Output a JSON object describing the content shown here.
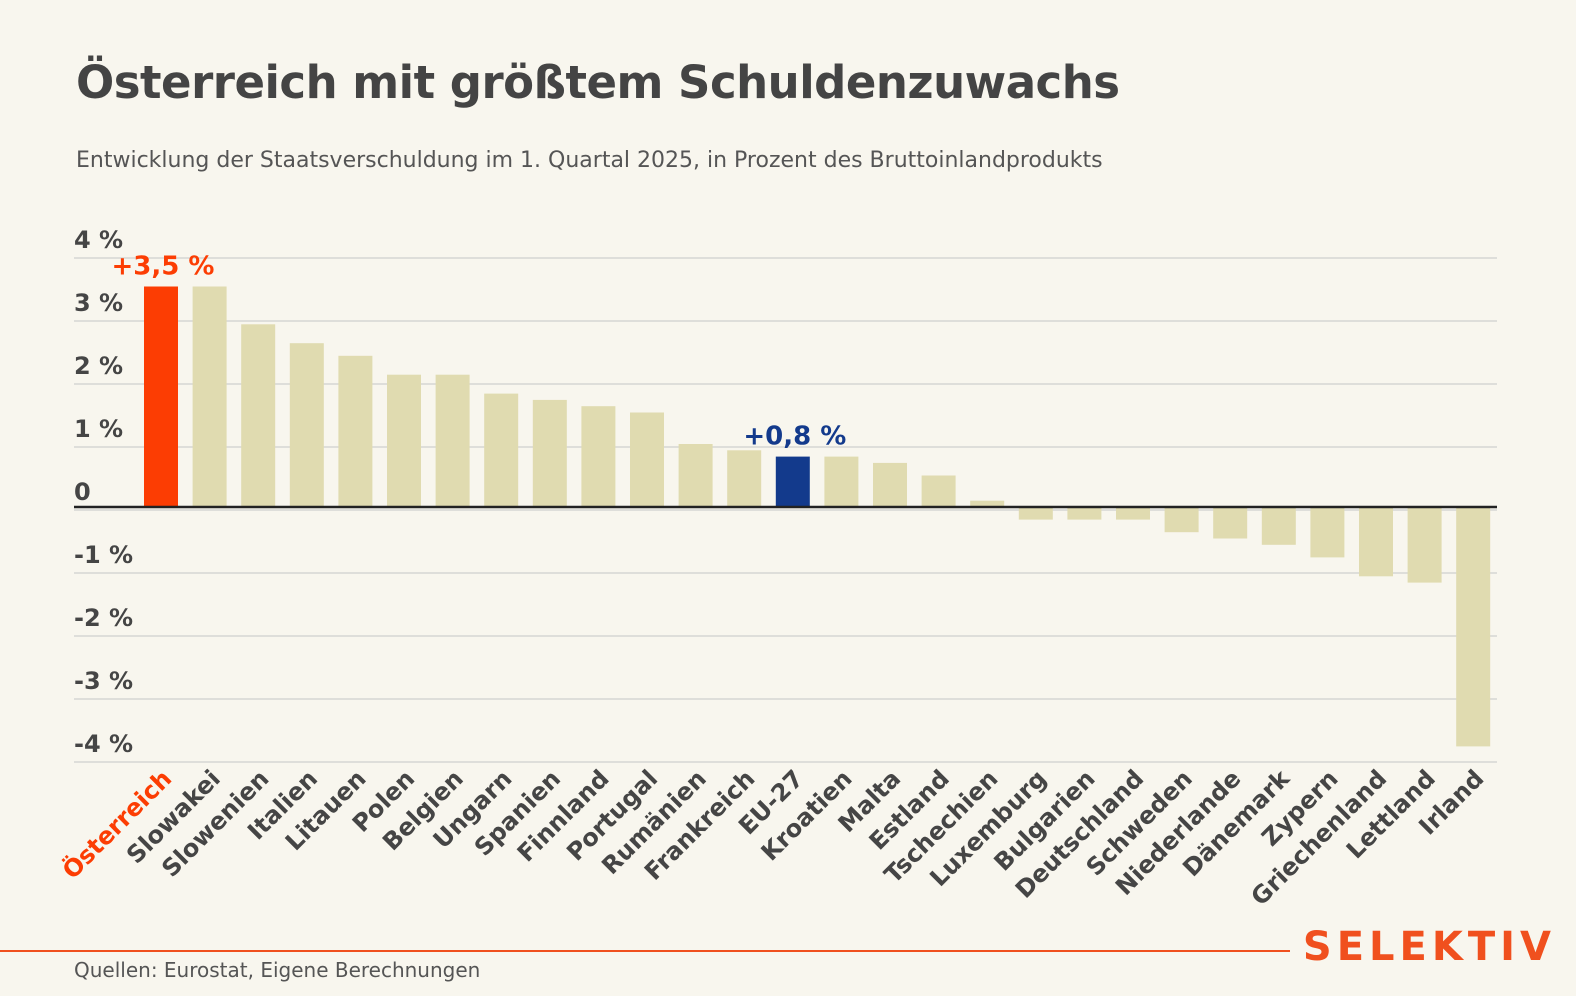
{
  "header": {
    "title": "Österreich mit größtem Schuldenzuwachs",
    "subtitle": "Entwicklung der Staatsverschuldung im 1. Quartal 2025, in Prozent des Bruttoinlandprodukts"
  },
  "footer": {
    "source": "Quellen: Eurostat, Eigene Berechnungen",
    "brand": "SELEKTIV"
  },
  "colors": {
    "default_bar": "#e0dbb0",
    "highlight_primary": "#fc3d03",
    "highlight_secondary": "#133a8c",
    "brand": "#f0501e",
    "grid": "#cfcfcf",
    "axis_text": "#454545"
  },
  "chart_data": {
    "type": "bar",
    "categories": [
      "Österreich",
      "Slowakei",
      "Slowenien",
      "Italien",
      "Litauen",
      "Polen",
      "Belgien",
      "Ungarn",
      "Spanien",
      "Finnland",
      "Portugal",
      "Rumänien",
      "Frankreich",
      "EU-27",
      "Kroatien",
      "Malta",
      "Estland",
      "Tschechien",
      "Luxemburg",
      "Bulgarien",
      "Deutschland",
      "Schweden",
      "Niederlande",
      "Dänemark",
      "Zypern",
      "Griechenland",
      "Lettland",
      "Irland"
    ],
    "values": [
      3.5,
      3.5,
      2.9,
      2.6,
      2.4,
      2.1,
      2.1,
      1.8,
      1.7,
      1.6,
      1.5,
      1.0,
      0.9,
      0.8,
      0.8,
      0.7,
      0.5,
      0.1,
      -0.2,
      -0.2,
      -0.2,
      -0.4,
      -0.5,
      -0.6,
      -0.8,
      -1.1,
      -1.2,
      -3.8
    ],
    "ylim": [
      -4,
      4
    ],
    "yticks": [
      4,
      3,
      2,
      1,
      0,
      -1,
      -2,
      -3,
      -4
    ],
    "ytick_labels": [
      "4 %",
      "3 %",
      "2 %",
      "1 %",
      "0",
      "-1 %",
      "-2 %",
      "-3 %",
      "-4 %"
    ],
    "highlights": [
      {
        "category": "Österreich",
        "label": "+3,5 %",
        "color": "#fc3d03"
      },
      {
        "category": "EU-27",
        "label": "+0,8 %",
        "color": "#133a8c"
      }
    ],
    "grid": true,
    "legend": "none"
  }
}
